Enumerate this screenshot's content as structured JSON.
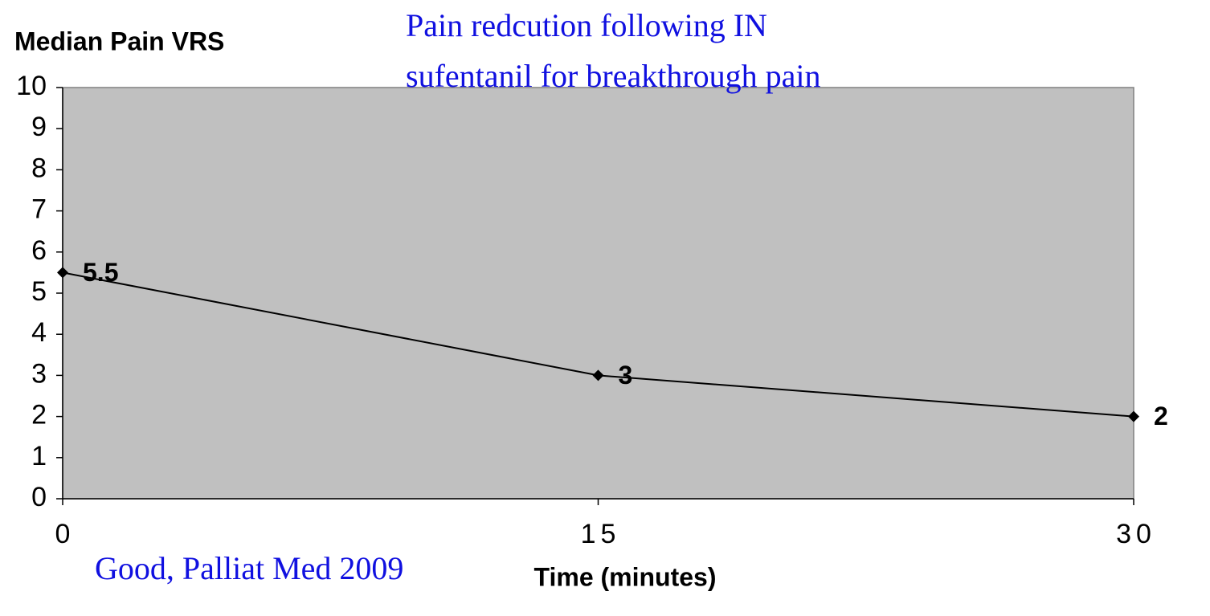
{
  "chart_data": {
    "type": "line",
    "title": [
      "Pain redcution following IN",
      "sufentanil for breakthrough pain"
    ],
    "y_label": "Median Pain VRS",
    "x_label": "Time (minutes)",
    "annotation": "Good, Palliat Med 2009",
    "x": [
      0,
      15,
      30
    ],
    "values": [
      5.5,
      3,
      2
    ],
    "color": "#000000",
    "xlim": [
      0,
      30
    ],
    "xticks": [
      0,
      15,
      30
    ],
    "ylim": [
      0,
      10
    ],
    "yticks": [
      0,
      1,
      2,
      3,
      4,
      5,
      6,
      7,
      8,
      9,
      10
    ],
    "grid": false
  }
}
